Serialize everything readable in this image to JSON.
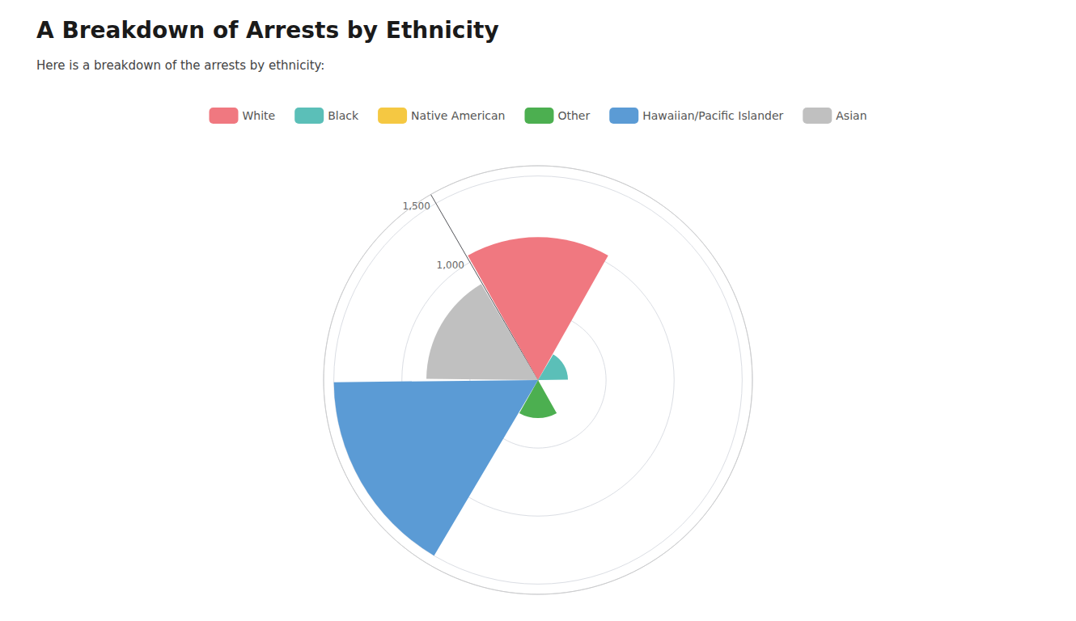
{
  "chart_data": {
    "type": "bar",
    "title": "A Breakdown of Arrests by Ethnicity",
    "subtitle": "Here is a breakdown of the arrests by ethnicity:",
    "categories": [
      "White",
      "Black",
      "Native American",
      "Other",
      "Hawaiian/Pacific Islander",
      "Asian"
    ],
    "values": [
      1050,
      220,
      5,
      280,
      1500,
      820
    ],
    "colors": [
      "#F07880",
      "#5BBFB8",
      "#F5C842",
      "#4CAF50",
      "#5B9BD5",
      "#C0C0C0"
    ],
    "ylim": [
      0,
      1575
    ],
    "yticks": [
      500,
      {
        "value": 1000,
        "label": "1,000"
      },
      {
        "value": 1500,
        "label": "1,500"
      }
    ],
    "grid": true,
    "legend": "top",
    "tick_labels": "y"
  }
}
